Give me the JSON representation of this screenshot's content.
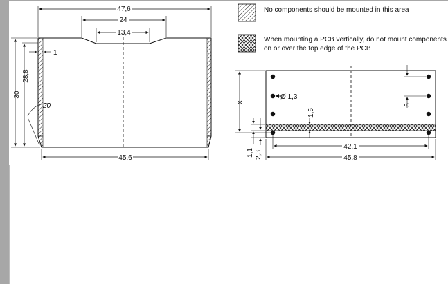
{
  "legend": {
    "hatched": "No components should be mounted in this area",
    "crosshatched_line1": "When mounting a PCB vertically, do not mount components",
    "crosshatched_line2": "on or over the top edge of the PCB"
  },
  "left_drawing": {
    "dim_top_width": "47,6",
    "dim_middle": "24",
    "dim_inner": "13,4",
    "dim_height_outer": "30",
    "dim_height_inner": "28,8",
    "dim_wall": "1",
    "dim_angle": "20",
    "dim_bottom_width": "45,6"
  },
  "right_drawing": {
    "dim_x": "X",
    "dim_hole": "Ø 1,3",
    "dim_strip": "1,5",
    "dim_5": "5",
    "dim_1_1": "1,1",
    "dim_2_3": "2,3",
    "dim_42_1": "42,1",
    "dim_45_8": "45,8"
  }
}
